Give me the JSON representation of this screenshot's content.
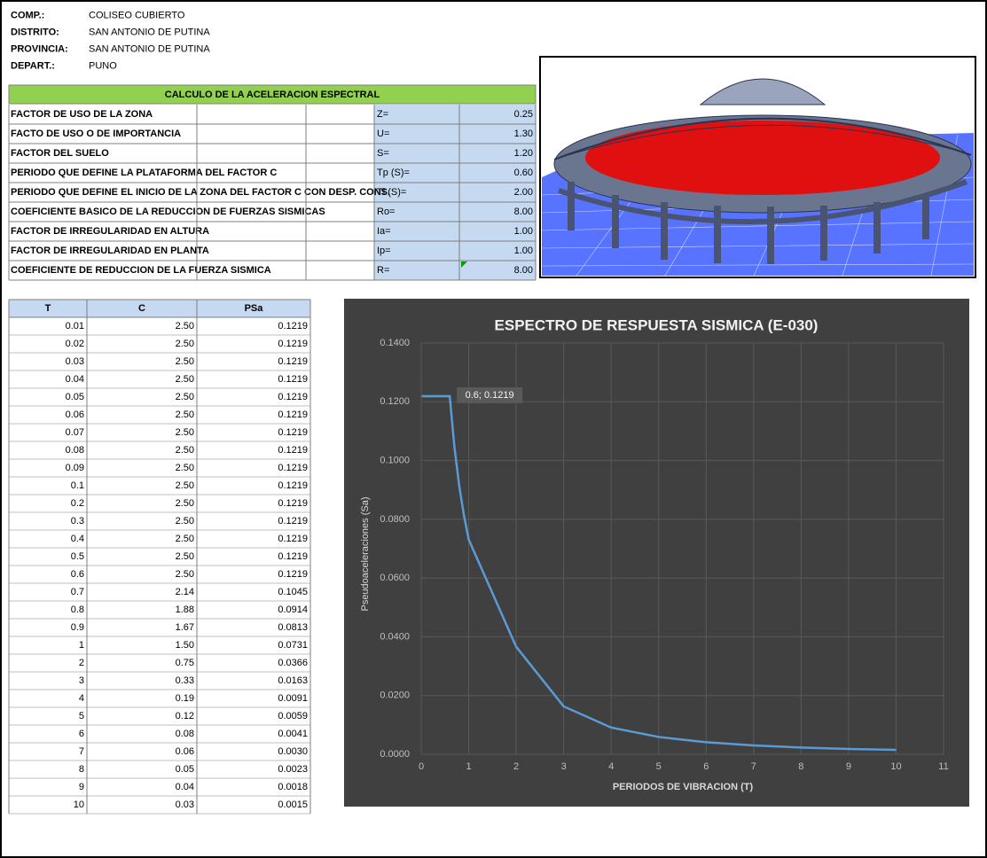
{
  "header": {
    "rows": [
      [
        "COMP.:",
        "COLISEO CUBIERTO"
      ],
      [
        "DISTRITO:",
        "SAN ANTONIO DE PUTINA"
      ],
      [
        "PROVINCIA:",
        "SAN ANTONIO DE PUTINA"
      ],
      [
        "DEPART.:",
        "PUNO"
      ]
    ]
  },
  "params": {
    "title": "CALCULO DE LA ACELERACION ESPECTRAL",
    "rows": [
      [
        "FACTOR DE USO DE LA ZONA",
        "Z=",
        "0.25"
      ],
      [
        "FACTO DE USO O DE IMPORTANCIA",
        "U=",
        "1.30"
      ],
      [
        "FACTOR DEL SUELO",
        "S=",
        "1.20"
      ],
      [
        "PERIODO QUE DEFINE LA PLATAFORMA DEL FACTOR C",
        "Tp (S)=",
        "0.60"
      ],
      [
        "PERIODO QUE DEFINE EL INICIO DE LA ZONA DEL FACTOR C CON DESP. CONS.",
        "Tl (S)=",
        "2.00"
      ],
      [
        "COEFICIENTE BASICO DE LA REDUCCION DE FUERZAS SISMICAS",
        "Ro=",
        "8.00"
      ],
      [
        "FACTOR DE IRREGULARIDAD EN ALTURA",
        "Ia=",
        "1.00"
      ],
      [
        "FACTOR DE IRREGULARIDAD EN PLANTA",
        "Ip=",
        "1.00"
      ],
      [
        "COEFICIENTE DE REDUCCION DE LA FUERZA SISMICA",
        "R=",
        "8.00"
      ]
    ]
  },
  "table": {
    "columns": [
      "T",
      "C",
      "PSa"
    ],
    "rows": [
      [
        "0.01",
        "2.50",
        "0.1219"
      ],
      [
        "0.02",
        "2.50",
        "0.1219"
      ],
      [
        "0.03",
        "2.50",
        "0.1219"
      ],
      [
        "0.04",
        "2.50",
        "0.1219"
      ],
      [
        "0.05",
        "2.50",
        "0.1219"
      ],
      [
        "0.06",
        "2.50",
        "0.1219"
      ],
      [
        "0.07",
        "2.50",
        "0.1219"
      ],
      [
        "0.08",
        "2.50",
        "0.1219"
      ],
      [
        "0.09",
        "2.50",
        "0.1219"
      ],
      [
        "0.1",
        "2.50",
        "0.1219"
      ],
      [
        "0.2",
        "2.50",
        "0.1219"
      ],
      [
        "0.3",
        "2.50",
        "0.1219"
      ],
      [
        "0.4",
        "2.50",
        "0.1219"
      ],
      [
        "0.5",
        "2.50",
        "0.1219"
      ],
      [
        "0.6",
        "2.50",
        "0.1219"
      ],
      [
        "0.7",
        "2.14",
        "0.1045"
      ],
      [
        "0.8",
        "1.88",
        "0.0914"
      ],
      [
        "0.9",
        "1.67",
        "0.0813"
      ],
      [
        "1",
        "1.50",
        "0.0731"
      ],
      [
        "2",
        "0.75",
        "0.0366"
      ],
      [
        "3",
        "0.33",
        "0.0163"
      ],
      [
        "4",
        "0.19",
        "0.0091"
      ],
      [
        "5",
        "0.12",
        "0.0059"
      ],
      [
        "6",
        "0.08",
        "0.0041"
      ],
      [
        "7",
        "0.06",
        "0.0030"
      ],
      [
        "8",
        "0.05",
        "0.0023"
      ],
      [
        "9",
        "0.04",
        "0.0018"
      ],
      [
        "10",
        "0.03",
        "0.0015"
      ]
    ]
  },
  "chart_data": {
    "type": "line",
    "title": "ESPECTRO DE RESPUESTA SISMICA (E-030)",
    "x_label": "PERIODOS DE VIBRACION (T)",
    "y_label": "Pseudoaceleraciones  (Sa)",
    "annotation": "0.6; 0.1219",
    "color": "#5b9bd5",
    "grid": true,
    "x": [
      0.01,
      0.02,
      0.03,
      0.04,
      0.05,
      0.06,
      0.07,
      0.08,
      0.09,
      0.1,
      0.2,
      0.3,
      0.4,
      0.5,
      0.6,
      0.7,
      0.8,
      0.9,
      1,
      2,
      3,
      4,
      5,
      6,
      7,
      8,
      9,
      10
    ],
    "values": [
      0.1219,
      0.1219,
      0.1219,
      0.1219,
      0.1219,
      0.1219,
      0.1219,
      0.1219,
      0.1219,
      0.1219,
      0.1219,
      0.1219,
      0.1219,
      0.1219,
      0.1219,
      0.1045,
      0.0914,
      0.0813,
      0.0731,
      0.0366,
      0.0163,
      0.0091,
      0.0059,
      0.0041,
      0.003,
      0.0023,
      0.0018,
      0.0015
    ],
    "xlim": [
      0,
      11
    ],
    "xticks": [
      0,
      1,
      2,
      3,
      4,
      5,
      6,
      7,
      8,
      9,
      10,
      11
    ],
    "ylim": [
      0,
      0.14
    ],
    "yticks": [
      {
        "value": 0,
        "label": "0.0000"
      },
      {
        "value": 0.02,
        "label": "0.0200"
      },
      {
        "value": 0.04,
        "label": "0.0400"
      },
      {
        "value": 0.06,
        "label": "0.0600"
      },
      {
        "value": 0.08,
        "label": "0.0800"
      },
      {
        "value": 0.1,
        "label": "0.1000"
      },
      {
        "value": 0.12,
        "label": "0.1200"
      },
      {
        "value": 0.14,
        "label": "0.1400"
      }
    ]
  }
}
